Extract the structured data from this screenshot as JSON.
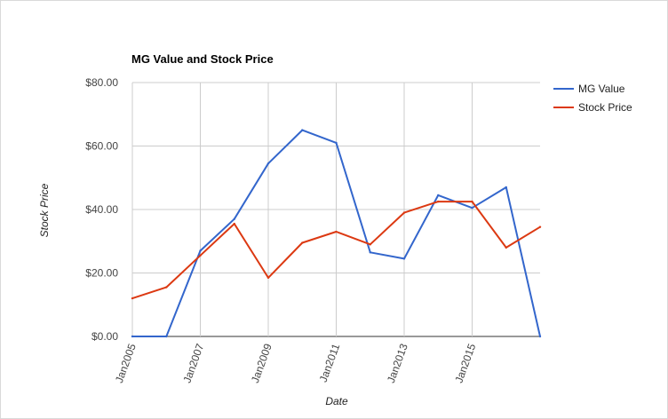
{
  "chart_data": {
    "type": "line",
    "title": "MG Value and Stock Price",
    "xlabel": "Date",
    "ylabel": "Stock Price",
    "x": [
      2005,
      2006,
      2007,
      2008,
      2009,
      2010,
      2011,
      2012,
      2013,
      2014,
      2015,
      2016,
      2017
    ],
    "x_tick_values": [
      2005,
      2007,
      2009,
      2011,
      2013,
      2015
    ],
    "x_tick_labels": [
      "Jan2005",
      "Jan2007",
      "Jan2009",
      "Jan2011",
      "Jan2013",
      "Jan2015"
    ],
    "ylim": [
      0,
      80
    ],
    "y_tick_values": [
      0,
      20,
      40,
      60,
      80
    ],
    "y_tick_labels": [
      "$0.00",
      "$20.00",
      "$40.00",
      "$60.00",
      "$80.00"
    ],
    "grid": true,
    "legend_position": "right",
    "series": [
      {
        "name": "MG Value",
        "color": "#3366cc",
        "values": [
          0,
          0,
          27,
          37,
          54.5,
          65,
          61,
          26.5,
          24.5,
          44.5,
          40.5,
          47,
          0
        ]
      },
      {
        "name": "Stock Price",
        "color": "#dc3912",
        "values": [
          12,
          15.5,
          25.5,
          35.5,
          18.5,
          29.5,
          33,
          29,
          39,
          42.5,
          42.5,
          28,
          34.5
        ]
      }
    ]
  }
}
